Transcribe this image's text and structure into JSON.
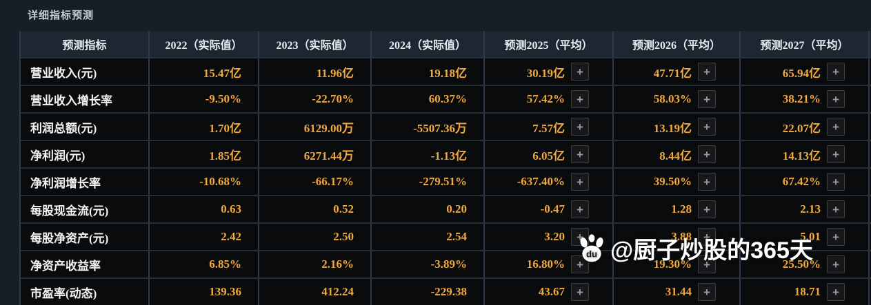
{
  "page": {
    "title": "详细指标预测"
  },
  "colors": {
    "page_bg": "#161e28",
    "header_bg": "#1e2631",
    "cell_bg": "#0a0b0c",
    "grid_border": "#2c3a49",
    "value_gold": "#f1a93e",
    "label_text": "#f3f4f6",
    "watermark_text": "#ffffff"
  },
  "table": {
    "plus_button_label": "+",
    "columns": [
      {
        "label": "预测指标",
        "type": "label"
      },
      {
        "label": "2022（实际值）",
        "type": "actual"
      },
      {
        "label": "2023（实际值）",
        "type": "actual"
      },
      {
        "label": "2024（实际值）",
        "type": "actual"
      },
      {
        "label": "预测2025（平均）",
        "type": "forecast"
      },
      {
        "label": "预测2026（平均）",
        "type": "forecast"
      },
      {
        "label": "预测2027（平均）",
        "type": "forecast"
      }
    ],
    "rows": [
      {
        "label": "营业收入(元)",
        "values": [
          "15.47亿",
          "11.96亿",
          "19.18亿",
          "30.19亿",
          "47.71亿",
          "65.94亿"
        ]
      },
      {
        "label": "营业收入增长率",
        "values": [
          "-9.50%",
          "-22.70%",
          "60.37%",
          "57.42%",
          "58.03%",
          "38.21%"
        ]
      },
      {
        "label": "利润总额(元)",
        "values": [
          "1.70亿",
          "6129.00万",
          "-5507.36万",
          "7.57亿",
          "13.19亿",
          "22.07亿"
        ]
      },
      {
        "label": "净利润(元)",
        "values": [
          "1.85亿",
          "6271.44万",
          "-1.13亿",
          "6.05亿",
          "8.44亿",
          "14.13亿"
        ]
      },
      {
        "label": "净利润增长率",
        "values": [
          "-10.68%",
          "-66.17%",
          "-279.51%",
          "-637.40%",
          "39.50%",
          "67.42%"
        ]
      },
      {
        "label": "每股现金流(元)",
        "values": [
          "0.63",
          "0.52",
          "0.20",
          "-0.47",
          "1.28",
          "2.13"
        ]
      },
      {
        "label": "每股净资产(元)",
        "values": [
          "2.42",
          "2.50",
          "2.54",
          "3.20",
          "3.88",
          "5.01"
        ]
      },
      {
        "label": "净资产收益率",
        "values": [
          "6.85%",
          "2.16%",
          "-3.89%",
          "16.80%",
          "19.30%",
          "25.50%"
        ]
      },
      {
        "label": "市盈率(动态)",
        "values": [
          "139.36",
          "412.24",
          "-229.38",
          "43.67",
          "31.44",
          "18.71"
        ]
      }
    ]
  },
  "watermark": {
    "icon": "baidu-paw-icon",
    "text": "@厨子炒股的365天"
  }
}
